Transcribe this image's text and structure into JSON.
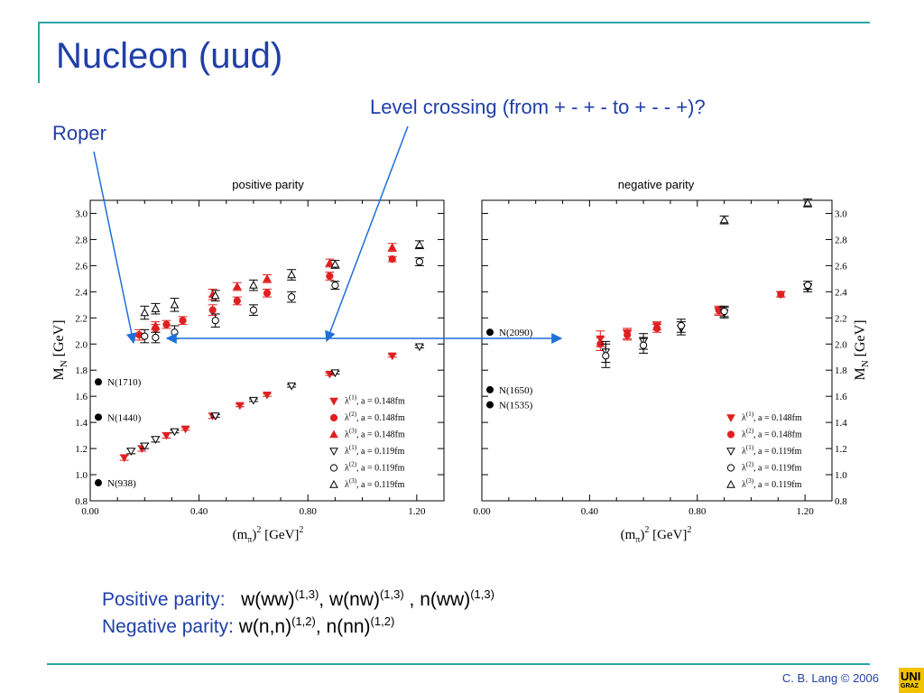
{
  "slide": {
    "title": "Nucleon (uud)",
    "annot_level": "Level crossing (from + - + -  to + - - +)?",
    "annot_roper": "Roper",
    "pos_label": "Positive parity:",
    "pos_b1": "w(ww)",
    "pos_s1": "(1,3)",
    "pos_sep1": ", ",
    "pos_b2": "w(nw)",
    "pos_s2": "(1,3)",
    "pos_sep2": " , ",
    "pos_b3": "n(ww)",
    "pos_s3": "(1,3)",
    "neg_label": "Negative parity:",
    "neg_b1": "w(n,n)",
    "neg_s1": "(1,2)",
    "neg_sep1": ", ",
    "neg_b2": "n(nn)",
    "neg_s2": "(1,2)",
    "footer": "C. B. Lang © 2006",
    "logo_line1": "UNI",
    "logo_line2": "GRAZ"
  },
  "chart_data": [
    {
      "type": "scatter",
      "title": "positive parity",
      "xlabel": "(m_π)² [GeV]²",
      "ylabel": "M_N [GeV]",
      "xlim": [
        0.0,
        1.3
      ],
      "ylim": [
        0.8,
        3.1
      ],
      "xticks": [
        "0.00",
        "0.40",
        "0.80",
        "1.20"
      ],
      "yticks": [
        "0.8",
        "1.0",
        "1.2",
        "1.4",
        "1.6",
        "1.8",
        "2.0",
        "2.2",
        "2.4",
        "2.6",
        "2.8",
        "3.0"
      ],
      "legend": "bottom-right",
      "series": [
        {
          "name": "λ(1), a = 0.148fm",
          "label_base": "λ",
          "label_sup": "(1)",
          "label_tail": ", a = 0.148fm",
          "marker": "tri-down-filled",
          "color": "#e02020",
          "x": [
            0.125,
            0.19,
            0.28,
            0.35,
            0.45,
            0.55,
            0.65,
            0.88,
            1.11
          ],
          "y": [
            1.13,
            1.2,
            1.3,
            1.35,
            1.45,
            1.53,
            1.61,
            1.77,
            1.91
          ],
          "err": [
            0.02,
            0.02,
            0.02,
            0.01,
            0.02,
            0.01,
            0.01,
            0.01,
            0.01
          ]
        },
        {
          "name": "λ(2), a = 0.148fm",
          "label_base": "λ",
          "label_sup": "(2)",
          "label_tail": ", a = 0.148fm",
          "marker": "circle-filled",
          "color": "#e02020",
          "x": [
            0.18,
            0.24,
            0.28,
            0.34,
            0.45,
            0.54,
            0.65,
            0.88,
            1.11
          ],
          "y": [
            2.07,
            2.12,
            2.15,
            2.18,
            2.26,
            2.33,
            2.39,
            2.52,
            2.65
          ],
          "err": [
            0.04,
            0.03,
            0.03,
            0.03,
            0.04,
            0.03,
            0.03,
            0.03,
            0.02
          ]
        },
        {
          "name": "λ(3), a = 0.148fm",
          "label_base": "λ",
          "label_sup": "(3)",
          "label_tail": ", a = 0.148fm",
          "marker": "tri-up-filled",
          "color": "#e02020",
          "x": [
            0.24,
            0.45,
            0.54,
            0.65,
            0.88,
            1.11
          ],
          "y": [
            2.14,
            2.38,
            2.44,
            2.5,
            2.62,
            2.74
          ],
          "err": [
            0.03,
            0.04,
            0.03,
            0.03,
            0.03,
            0.03
          ]
        },
        {
          "name": "λ(1), a = 0.119fm",
          "label_base": "λ",
          "label_sup": "(1)",
          "label_tail": ", a = 0.119fm",
          "marker": "tri-down-open",
          "color": "#000000",
          "x": [
            0.15,
            0.2,
            0.24,
            0.31,
            0.46,
            0.6,
            0.74,
            0.9,
            1.21
          ],
          "y": [
            1.18,
            1.22,
            1.27,
            1.33,
            1.45,
            1.57,
            1.68,
            1.78,
            1.98
          ],
          "err": [
            0.02,
            0.02,
            0.02,
            0.01,
            0.01,
            0.01,
            0.01,
            0.01,
            0.01
          ]
        },
        {
          "name": "λ(2), a = 0.119fm",
          "label_base": "λ",
          "label_sup": "(2)",
          "label_tail": ", a = 0.119fm",
          "marker": "circle-open",
          "color": "#000000",
          "x": [
            0.2,
            0.24,
            0.31,
            0.46,
            0.6,
            0.74,
            0.9,
            1.21
          ],
          "y": [
            2.06,
            2.05,
            2.09,
            2.18,
            2.26,
            2.36,
            2.45,
            2.63
          ],
          "err": [
            0.05,
            0.04,
            0.05,
            0.05,
            0.04,
            0.04,
            0.03,
            0.03
          ]
        },
        {
          "name": "λ(3), a = 0.119fm",
          "label_base": "λ",
          "label_sup": "(3)",
          "label_tail": ", a = 0.119fm",
          "marker": "tri-up-open",
          "color": "#000000",
          "x": [
            0.2,
            0.24,
            0.31,
            0.46,
            0.6,
            0.74,
            0.9,
            1.21
          ],
          "y": [
            2.24,
            2.27,
            2.3,
            2.37,
            2.45,
            2.53,
            2.61,
            2.76
          ],
          "err": [
            0.05,
            0.04,
            0.05,
            0.04,
            0.04,
            0.04,
            0.03,
            0.03
          ]
        }
      ],
      "experiment": [
        {
          "label": "N(1710)",
          "value": 1.71
        },
        {
          "label": "N(1440)",
          "value": 1.44
        },
        {
          "label": "N(938)",
          "value": 0.938
        }
      ]
    },
    {
      "type": "scatter",
      "title": "negative parity",
      "xlabel": "(m_π)² [GeV]²",
      "ylabel": "M_N [GeV]",
      "xlim": [
        0.0,
        1.3
      ],
      "ylim": [
        0.8,
        3.1
      ],
      "xticks": [
        "0.00",
        "0.40",
        "0.80",
        "1.20"
      ],
      "yticks": [
        "0.8",
        "1.0",
        "1.2",
        "1.4",
        "1.6",
        "1.8",
        "2.0",
        "2.2",
        "2.4",
        "2.6",
        "2.8",
        "3.0"
      ],
      "legend": "bottom-right",
      "series": [
        {
          "name": "λ(1), a = 0.148fm",
          "label_base": "λ",
          "label_sup": "(1)",
          "label_tail": ", a = 0.148fm",
          "marker": "tri-down-filled",
          "color": "#e02020",
          "x": [
            0.44,
            0.54,
            0.65,
            0.88,
            1.11
          ],
          "y": [
            2.04,
            2.08,
            2.14,
            2.25,
            2.38
          ],
          "err": [
            0.06,
            0.04,
            0.03,
            0.03,
            0.02
          ]
        },
        {
          "name": "λ(2), a = 0.148fm",
          "label_base": "λ",
          "label_sup": "(2)",
          "label_tail": ", a = 0.148fm",
          "marker": "circle-filled",
          "color": "#e02020",
          "x": [
            0.44,
            0.54,
            0.65,
            0.88,
            1.11
          ],
          "y": [
            2.0,
            2.07,
            2.12,
            2.26,
            2.38
          ],
          "err": [
            0.05,
            0.04,
            0.03,
            0.03,
            0.02
          ]
        },
        {
          "name": "λ(1), a = 0.119fm",
          "label_base": "λ",
          "label_sup": "(1)",
          "label_tail": ", a = 0.119fm",
          "marker": "tri-down-open",
          "color": "#000000",
          "x": [
            0.46,
            0.6,
            0.74,
            0.9,
            1.21
          ],
          "y": [
            1.94,
            2.02,
            2.12,
            2.24,
            2.43
          ],
          "err": [
            0.08,
            0.06,
            0.05,
            0.04,
            0.03
          ]
        },
        {
          "name": "λ(2), a = 0.119fm",
          "label_base": "λ",
          "label_sup": "(2)",
          "label_tail": ", a = 0.119fm",
          "marker": "circle-open",
          "color": "#000000",
          "x": [
            0.46,
            0.6,
            0.74,
            0.9,
            1.21
          ],
          "y": [
            1.91,
            1.99,
            2.14,
            2.25,
            2.45
          ],
          "err": [
            0.09,
            0.06,
            0.05,
            0.04,
            0.03
          ]
        },
        {
          "name": "λ(3), a = 0.119fm",
          "label_base": "λ",
          "label_sup": "(3)",
          "label_tail": ", a = 0.119fm",
          "marker": "tri-up-open",
          "color": "#000000",
          "x": [
            0.9,
            1.21
          ],
          "y": [
            2.95,
            3.08
          ],
          "err": [
            0.03,
            0.03
          ]
        }
      ],
      "experiment": [
        {
          "label": "N(2090)",
          "value": 2.09
        },
        {
          "label": "N(1650)",
          "value": 1.65
        },
        {
          "label": "N(1535)",
          "value": 1.535
        }
      ]
    }
  ]
}
